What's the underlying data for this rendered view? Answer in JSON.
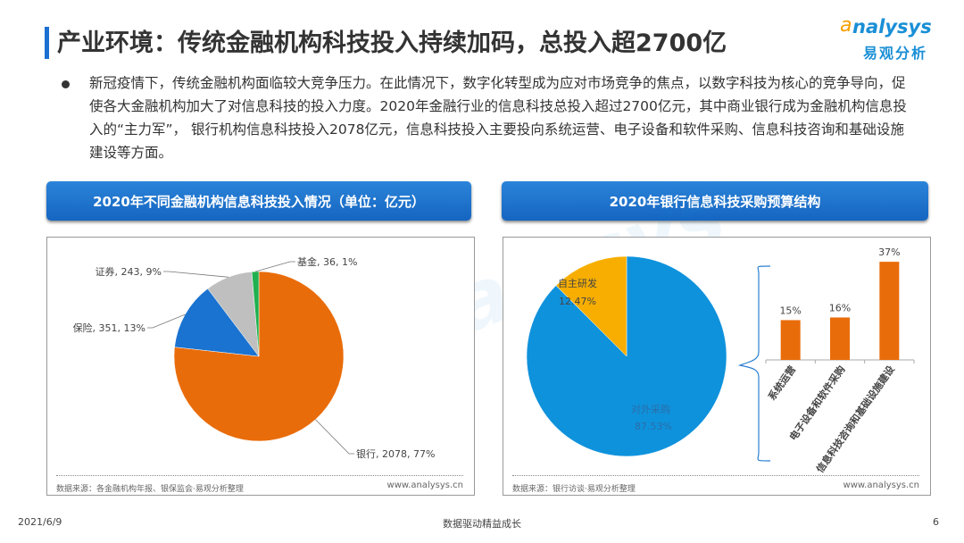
{
  "header": {
    "title": "产业环境：传统金融机构科技投入持续加码，总投入超2700亿",
    "logo_en": "nalysys",
    "logo_cn": "易观分析",
    "logo_a": "a"
  },
  "body": {
    "paragraph": "新冠疫情下，传统金融机构面临较大竞争压力。在此情况下，数字化转型成为应对市场竞争的焦点，以数字科技为核心的竞争导向，促使各大金融机构加大了对信息科技的投入力度。2020年金融行业的信息科技总投入超过2700亿元，其中商业银行成为金融机构信息投入的“主力军”， 银行机构信息科技投入2078亿元，信息科技投入主要投向系统运营、电子设备和软件采购、信息科技咨询和基础设施建设等方面。"
  },
  "chart_data": [
    {
      "type": "pie",
      "title": "2020年不同金融机构信息科技投入情况（单位：亿元）",
      "slices": [
        {
          "label": "银行",
          "value": 2078,
          "percent": "77%",
          "color": "#e96c0a",
          "text": "银行, 2078, 77%"
        },
        {
          "label": "保险",
          "value": 351,
          "percent": "13%",
          "color": "#1a73d0",
          "text": "保险, 351, 13%"
        },
        {
          "label": "证券",
          "value": 243,
          "percent": "9%",
          "color": "#bfbfbf",
          "text": "证券, 243, 9%"
        },
        {
          "label": "基金",
          "value": 36,
          "percent": "1%",
          "color": "#1fb04f",
          "text": "基金, 36, 1%"
        }
      ],
      "source": "数据来源：各金融机构年报、银保监会·易观分析整理",
      "website": "www.analysys.cn"
    },
    {
      "type": "pie+bar",
      "title": "2020年银行信息科技采购预算结构",
      "slices": [
        {
          "label": "对外采购",
          "value": 87.53,
          "text": "87.53%",
          "color": "#0f92dc"
        },
        {
          "label": "自主研发",
          "value": 12.47,
          "text": "12.47%",
          "color": "#f7ae00"
        }
      ],
      "bars": {
        "categories": [
          "系统运营",
          "电子设备和软件采购",
          "信息科技咨询和基础设施建设"
        ],
        "values": [
          15,
          16,
          37
        ],
        "labels": [
          "15%",
          "16%",
          "37%"
        ],
        "color": "#e96c0a"
      },
      "source": "数据来源：银行访谈·易观分析整理",
      "website": "www.analysys.cn"
    }
  ],
  "footer": {
    "date": "2021/6/9",
    "center": "数据驱动精益成长",
    "page": "6"
  }
}
